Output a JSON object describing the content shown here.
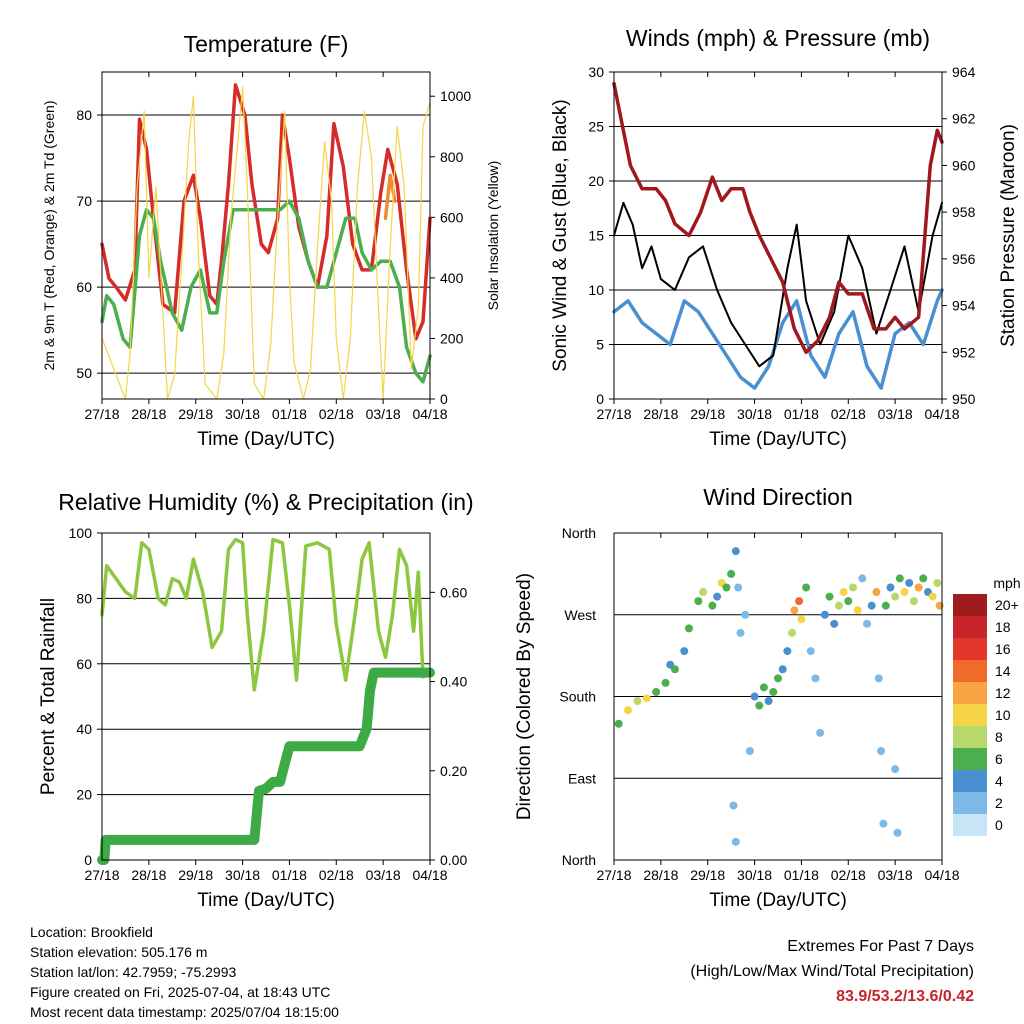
{
  "info": {
    "location": "Location: Brookfield",
    "elevation": "Station elevation: 505.176 m",
    "latlon": "Station lat/lon: 42.7959; -75.2993",
    "created": "Figure created on Fri, 2025-07-04, at 18:43 UTC",
    "timestamp": "Most recent data timestamp: 2025/07/04 18:15:00"
  },
  "extremes": {
    "title": "Extremes For Past 7 Days",
    "subtitle": "(High/Low/Max Wind/Total Precipitation)",
    "values": "83.9/53.2/13.6/0.42"
  },
  "chart_data": [
    {
      "type": "line",
      "title": "Temperature (F)",
      "xlabel": "Time (Day/UTC)",
      "ylabel": "2m & 9m T (Red, Orange) & 2m Td (Green)",
      "y2label": "Solar Insolation (Yellow)",
      "x_ticks": [
        "27/18",
        "28/18",
        "29/18",
        "30/18",
        "01/18",
        "02/18",
        "03/18",
        "04/18"
      ],
      "xlim": [
        0,
        7
      ],
      "ylim": [
        47,
        85
      ],
      "yticks": [
        50,
        60,
        70,
        80
      ],
      "y2lim": [
        0,
        1080
      ],
      "y2ticks": [
        0,
        200,
        400,
        600,
        800,
        1000
      ],
      "series": [
        {
          "color": "#d62b2b",
          "axis": "left",
          "x": [
            0,
            0.15,
            0.3,
            0.5,
            0.7,
            0.8,
            0.95,
            1.1,
            1.3,
            1.55,
            1.75,
            1.95,
            2.1,
            2.3,
            2.45,
            2.55,
            2.7,
            2.85,
            3.05,
            3.2,
            3.4,
            3.55,
            3.75,
            3.85,
            4.0,
            4.2,
            4.4,
            4.6,
            4.8,
            4.95,
            5.15,
            5.35,
            5.55,
            5.75,
            5.95,
            6.1,
            6.3,
            6.5,
            6.7,
            6.85,
            7.0
          ],
          "y": [
            65,
            61,
            60,
            58.5,
            62,
            79.5,
            76,
            68,
            58,
            57,
            70,
            73,
            68,
            59,
            58,
            63,
            72,
            83.5,
            80,
            72,
            65,
            64,
            68,
            80,
            75,
            67,
            63,
            60,
            66,
            79,
            74,
            65,
            62,
            62,
            71,
            76,
            72,
            62,
            54,
            56,
            68
          ]
        },
        {
          "color": "#f08a30",
          "axis": "left",
          "x": [
            6.05,
            6.15,
            6.25
          ],
          "y": [
            68,
            73,
            70
          ]
        },
        {
          "color": "#4cae4c",
          "axis": "left",
          "x": [
            0,
            0.1,
            0.25,
            0.45,
            0.6,
            0.8,
            0.95,
            1.1,
            1.25,
            1.5,
            1.7,
            1.9,
            2.1,
            2.3,
            2.45,
            2.6,
            2.8,
            3.0,
            3.2,
            3.4,
            3.6,
            3.8,
            4.0,
            4.2,
            4.4,
            4.6,
            4.8,
            5.0,
            5.2,
            5.4,
            5.55,
            5.75,
            5.95,
            6.15,
            6.35,
            6.5,
            6.7,
            6.85,
            7.0
          ],
          "y": [
            56,
            59,
            58,
            54,
            53,
            66,
            69,
            68,
            63,
            57,
            55,
            60,
            62,
            57,
            57,
            63,
            69,
            69,
            69,
            69,
            69,
            69,
            70,
            68,
            63,
            60,
            60,
            64,
            68,
            68,
            64,
            62,
            63,
            63,
            60,
            53,
            50,
            49,
            52
          ]
        },
        {
          "color": "#f5d547",
          "axis": "right",
          "x": [
            0,
            0.5,
            0.6,
            0.75,
            0.9,
            1.0,
            1.15,
            1.4,
            1.55,
            1.7,
            1.85,
            1.95,
            2.05,
            2.2,
            2.45,
            2.6,
            2.75,
            2.9,
            3.0,
            3.1,
            3.25,
            3.45,
            3.6,
            3.75,
            3.9,
            4.0,
            4.1,
            4.3,
            4.45,
            4.6,
            4.75,
            4.9,
            5.0,
            5.15,
            5.3,
            5.45,
            5.6,
            5.75,
            5.9,
            6.0,
            6.15,
            6.3,
            6.45,
            6.6,
            6.75,
            6.85,
            7.0
          ],
          "y": [
            200,
            0,
            150,
            700,
            950,
            400,
            700,
            0,
            80,
            450,
            850,
            1000,
            500,
            50,
            0,
            150,
            600,
            850,
            1030,
            700,
            50,
            0,
            180,
            600,
            950,
            400,
            120,
            0,
            100,
            500,
            850,
            650,
            200,
            0,
            200,
            700,
            950,
            800,
            300,
            0,
            500,
            900,
            700,
            100,
            300,
            900,
            980
          ]
        }
      ]
    },
    {
      "type": "line",
      "title": "Winds (mph) & Pressure (mb)",
      "xlabel": "Time (Day/UTC)",
      "ylabel": "Sonic Wind & Gust (Blue, Black)",
      "y2label": "Station Pressure (Maroon)",
      "x_ticks": [
        "27/18",
        "28/18",
        "29/18",
        "30/18",
        "01/18",
        "02/18",
        "03/18",
        "04/18"
      ],
      "xlim": [
        0,
        7
      ],
      "ylim": [
        0,
        30
      ],
      "yticks": [
        0,
        5,
        10,
        15,
        20,
        25,
        30
      ],
      "y2lim": [
        950,
        964
      ],
      "y2ticks": [
        950,
        952,
        954,
        956,
        958,
        960,
        962,
        964
      ],
      "series": [
        {
          "color": "#4a90d0",
          "axis": "left",
          "x": [
            0,
            0.3,
            0.6,
            0.9,
            1.2,
            1.5,
            1.8,
            2.1,
            2.4,
            2.7,
            3.0,
            3.3,
            3.6,
            3.9,
            4.2,
            4.5,
            4.8,
            5.1,
            5.4,
            5.7,
            6.0,
            6.3,
            6.6,
            6.9,
            7.0
          ],
          "y": [
            8,
            9,
            7,
            6,
            5,
            9,
            8,
            6,
            4,
            2,
            1,
            3,
            7,
            9,
            4,
            2,
            6,
            8,
            3,
            1,
            6,
            7,
            5,
            9,
            10
          ]
        },
        {
          "color": "#000000",
          "axis": "left",
          "x": [
            0,
            0.2,
            0.4,
            0.6,
            0.8,
            1.0,
            1.3,
            1.6,
            1.9,
            2.2,
            2.5,
            2.8,
            3.1,
            3.4,
            3.7,
            3.9,
            4.1,
            4.4,
            4.7,
            5.0,
            5.3,
            5.6,
            5.9,
            6.2,
            6.5,
            6.8,
            7.0
          ],
          "y": [
            15,
            18,
            16,
            12,
            14,
            11,
            10,
            13,
            14,
            10,
            7,
            5,
            3,
            4,
            12,
            16,
            9,
            5,
            8,
            15,
            12,
            6,
            10,
            14,
            8,
            15,
            18
          ]
        },
        {
          "color": "#a0171f",
          "axis": "right",
          "x": [
            0,
            0.15,
            0.35,
            0.6,
            0.9,
            1.1,
            1.3,
            1.6,
            1.85,
            2.1,
            2.3,
            2.5,
            2.75,
            2.9,
            3.1,
            3.35,
            3.6,
            3.85,
            4.1,
            4.35,
            4.6,
            4.8,
            5.0,
            5.3,
            5.55,
            5.8,
            6.0,
            6.2,
            6.5,
            6.75,
            6.9,
            7.0
          ],
          "y": [
            963.5,
            962,
            960,
            959,
            959,
            958.5,
            957.5,
            957,
            958,
            959.5,
            958.5,
            959,
            959,
            958,
            957,
            956,
            955,
            953,
            952,
            952.5,
            953.5,
            955,
            954.5,
            954.5,
            953,
            953,
            953.5,
            953,
            953.5,
            960,
            961.5,
            961
          ]
        }
      ]
    },
    {
      "type": "line",
      "title": "Relative Humidity (%) & Precipitation (in)",
      "xlabel": "Time (Day/UTC)",
      "ylabel": "Percent & Total Rainfall",
      "x_ticks": [
        "27/18",
        "28/18",
        "29/18",
        "30/18",
        "01/18",
        "02/18",
        "03/18",
        "04/18"
      ],
      "xlim": [
        0,
        7
      ],
      "ylim": [
        0,
        100
      ],
      "yticks": [
        0,
        20,
        40,
        60,
        80,
        100
      ],
      "y2lim": [
        0,
        0.733
      ],
      "y2ticks": [
        "0.00",
        "0.20",
        "0.40",
        "0.60"
      ],
      "series": [
        {
          "color": "#8dc63f",
          "axis": "left",
          "x": [
            0,
            0.1,
            0.3,
            0.5,
            0.7,
            0.85,
            1.0,
            1.2,
            1.35,
            1.5,
            1.65,
            1.8,
            1.95,
            2.15,
            2.35,
            2.55,
            2.7,
            2.85,
            3.0,
            3.1,
            3.25,
            3.45,
            3.65,
            3.85,
            4.0,
            4.15,
            4.35,
            4.6,
            4.85,
            5.0,
            5.2,
            5.4,
            5.55,
            5.7,
            5.9,
            6.05,
            6.2,
            6.35,
            6.5,
            6.65,
            6.75,
            6.85,
            7.0
          ],
          "y": [
            75,
            90,
            86,
            82,
            80,
            97,
            95,
            80,
            78,
            86,
            85,
            80,
            92,
            82,
            65,
            70,
            95,
            98,
            97,
            75,
            52,
            70,
            98,
            97,
            78,
            55,
            96,
            97,
            95,
            72,
            55,
            75,
            92,
            97,
            70,
            62,
            75,
            95,
            90,
            70,
            88,
            56,
            57
          ]
        },
        {
          "color": "#3daa45",
          "axis": "right",
          "x": [
            0,
            0.05,
            0.08,
            1,
            2,
            3,
            3.25,
            3.35,
            3.5,
            3.65,
            3.8,
            3.9,
            4.0,
            4.3,
            5.0,
            5.5,
            5.65,
            5.72,
            5.8,
            5.85,
            6.0,
            7.0
          ],
          "y": [
            0.0,
            0.0,
            0.045,
            0.045,
            0.045,
            0.045,
            0.045,
            0.155,
            0.16,
            0.175,
            0.175,
            0.215,
            0.255,
            0.255,
            0.255,
            0.255,
            0.295,
            0.38,
            0.42,
            0.42,
            0.42,
            0.42
          ]
        }
      ]
    },
    {
      "type": "scatter",
      "title": "Wind Direction",
      "xlabel": "Time (Day/UTC)",
      "ylabel": "Direction (Colored By Speed)",
      "x_ticks": [
        "27/18",
        "28/18",
        "29/18",
        "30/18",
        "01/18",
        "02/18",
        "03/18",
        "04/18"
      ],
      "xlim": [
        0,
        7
      ],
      "y_ticks": [
        "North",
        "East",
        "South",
        "West",
        "North"
      ],
      "ylim": [
        0,
        360
      ],
      "colorbar": {
        "label": "mph",
        "ticks": [
          "20+",
          "18",
          "16",
          "14",
          "12",
          "10",
          "8",
          "6",
          "4",
          "2",
          "0"
        ],
        "colors": [
          "#9e1b1e",
          "#c8242b",
          "#e2372a",
          "#f06a2c",
          "#f8a443",
          "#f5d547",
          "#b7d86a",
          "#4cae4c",
          "#4a90d0",
          "#7cb9e6",
          "#c6e6f8"
        ]
      },
      "points": [
        {
          "x": 0.1,
          "y": 150,
          "s": 6
        },
        {
          "x": 0.3,
          "y": 165,
          "s": 10
        },
        {
          "x": 0.5,
          "y": 175,
          "s": 8
        },
        {
          "x": 0.7,
          "y": 178,
          "s": 9
        },
        {
          "x": 0.9,
          "y": 185,
          "s": 6
        },
        {
          "x": 1.1,
          "y": 195,
          "s": 5
        },
        {
          "x": 1.2,
          "y": 215,
          "s": 4
        },
        {
          "x": 1.3,
          "y": 210,
          "s": 6
        },
        {
          "x": 1.5,
          "y": 230,
          "s": 4
        },
        {
          "x": 1.6,
          "y": 255,
          "s": 6
        },
        {
          "x": 1.8,
          "y": 285,
          "s": 5
        },
        {
          "x": 1.9,
          "y": 295,
          "s": 8
        },
        {
          "x": 2.1,
          "y": 280,
          "s": 6
        },
        {
          "x": 2.2,
          "y": 290,
          "s": 4
        },
        {
          "x": 2.3,
          "y": 305,
          "s": 10
        },
        {
          "x": 2.4,
          "y": 300,
          "s": 6
        },
        {
          "x": 2.5,
          "y": 315,
          "s": 5
        },
        {
          "x": 2.6,
          "y": 340,
          "s": 4
        },
        {
          "x": 2.65,
          "y": 300,
          "s": 2
        },
        {
          "x": 2.7,
          "y": 250,
          "s": 1
        },
        {
          "x": 2.8,
          "y": 270,
          "s": 2
        },
        {
          "x": 2.9,
          "y": 120,
          "s": 1
        },
        {
          "x": 2.55,
          "y": 60,
          "s": 2
        },
        {
          "x": 2.6,
          "y": 20,
          "s": 1
        },
        {
          "x": 3.0,
          "y": 180,
          "s": 4
        },
        {
          "x": 3.1,
          "y": 170,
          "s": 5
        },
        {
          "x": 3.2,
          "y": 190,
          "s": 6
        },
        {
          "x": 3.3,
          "y": 175,
          "s": 4
        },
        {
          "x": 3.4,
          "y": 185,
          "s": 5
        },
        {
          "x": 3.5,
          "y": 200,
          "s": 6
        },
        {
          "x": 3.6,
          "y": 210,
          "s": 4
        },
        {
          "x": 3.7,
          "y": 230,
          "s": 4
        },
        {
          "x": 3.8,
          "y": 250,
          "s": 8
        },
        {
          "x": 3.85,
          "y": 275,
          "s": 12
        },
        {
          "x": 3.95,
          "y": 285,
          "s": 14
        },
        {
          "x": 4.0,
          "y": 265,
          "s": 10
        },
        {
          "x": 4.1,
          "y": 300,
          "s": 6
        },
        {
          "x": 4.2,
          "y": 230,
          "s": 2
        },
        {
          "x": 4.3,
          "y": 200,
          "s": 2
        },
        {
          "x": 4.4,
          "y": 140,
          "s": 1
        },
        {
          "x": 4.5,
          "y": 270,
          "s": 4
        },
        {
          "x": 4.6,
          "y": 290,
          "s": 6
        },
        {
          "x": 4.7,
          "y": 260,
          "s": 4
        },
        {
          "x": 4.8,
          "y": 280,
          "s": 8
        },
        {
          "x": 4.9,
          "y": 295,
          "s": 10
        },
        {
          "x": 5.0,
          "y": 285,
          "s": 6
        },
        {
          "x": 5.1,
          "y": 300,
          "s": 8
        },
        {
          "x": 5.2,
          "y": 275,
          "s": 10
        },
        {
          "x": 5.3,
          "y": 310,
          "s": 2
        },
        {
          "x": 5.4,
          "y": 260,
          "s": 1
        },
        {
          "x": 5.5,
          "y": 280,
          "s": 4
        },
        {
          "x": 5.6,
          "y": 295,
          "s": 12
        },
        {
          "x": 5.65,
          "y": 200,
          "s": 2
        },
        {
          "x": 5.7,
          "y": 120,
          "s": 1
        },
        {
          "x": 5.75,
          "y": 40,
          "s": 2
        },
        {
          "x": 5.8,
          "y": 280,
          "s": 6
        },
        {
          "x": 5.9,
          "y": 300,
          "s": 4
        },
        {
          "x": 6.0,
          "y": 290,
          "s": 8
        },
        {
          "x": 6.1,
          "y": 310,
          "s": 6
        },
        {
          "x": 6.2,
          "y": 295,
          "s": 10
        },
        {
          "x": 6.3,
          "y": 305,
          "s": 4
        },
        {
          "x": 6.4,
          "y": 285,
          "s": 8
        },
        {
          "x": 6.5,
          "y": 300,
          "s": 12
        },
        {
          "x": 6.6,
          "y": 310,
          "s": 6
        },
        {
          "x": 6.7,
          "y": 295,
          "s": 4
        },
        {
          "x": 6.8,
          "y": 290,
          "s": 10
        },
        {
          "x": 6.9,
          "y": 305,
          "s": 8
        },
        {
          "x": 6.95,
          "y": 280,
          "s": 12
        },
        {
          "x": 6.0,
          "y": 100,
          "s": 1
        },
        {
          "x": 6.05,
          "y": 30,
          "s": 2
        }
      ]
    }
  ]
}
